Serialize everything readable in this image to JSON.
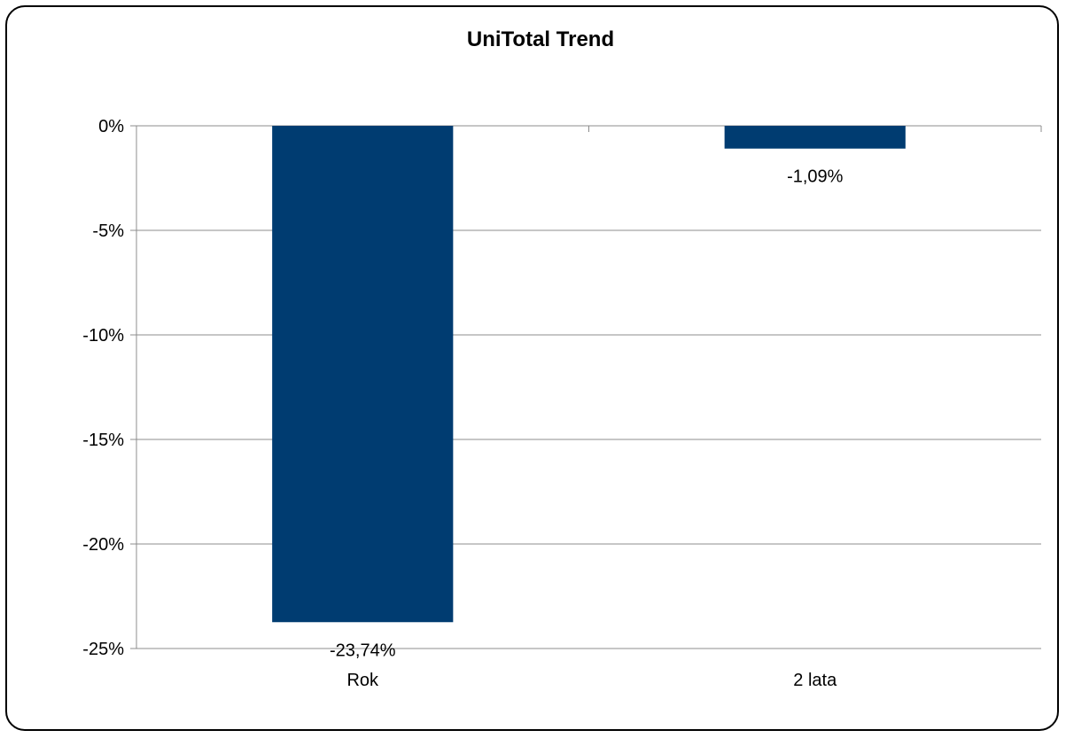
{
  "chart_data": {
    "type": "bar",
    "title": "UniTotal Trend",
    "xlabel": "",
    "ylabel": "",
    "categories": [
      "Rok",
      "2 lata"
    ],
    "values": [
      -23.74,
      -1.09
    ],
    "data_labels": [
      "-23,74%",
      "-1,09%"
    ],
    "ylim": [
      -25,
      0
    ],
    "yticks": [
      0,
      -5,
      -10,
      -15,
      -20,
      -25
    ],
    "ytick_labels": [
      "0%",
      "-5%",
      "-10%",
      "-15%",
      "-20%",
      "-25%"
    ],
    "grid": true,
    "legend": "none",
    "bar_color": "#003C71",
    "grid_color": "#8c8c8c"
  }
}
